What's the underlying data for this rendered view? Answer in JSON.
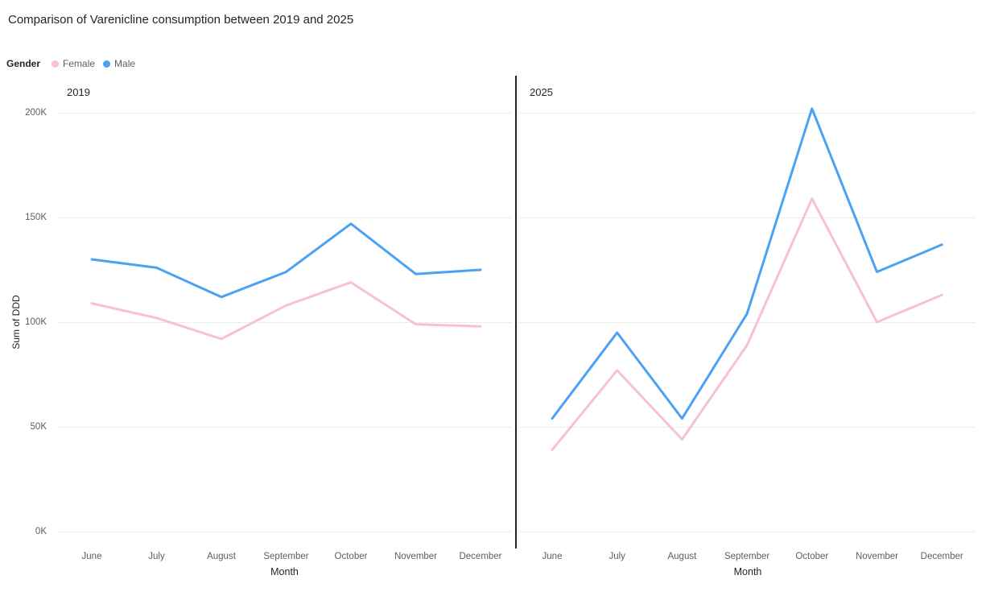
{
  "title": "Comparison of Varenicline consumption between 2019 and 2025",
  "legend": {
    "label": "Gender",
    "items": [
      {
        "name": "Female",
        "color": "#F8BFDA"
      },
      {
        "name": "Male",
        "color": "#4BA2F2"
      }
    ]
  },
  "chart_data": {
    "type": "line",
    "x": [
      "June",
      "July",
      "August",
      "September",
      "October",
      "November",
      "December"
    ],
    "xlabel": "Month",
    "ylabel": "Sum of DDD",
    "ylim": [
      0,
      200000
    ],
    "yticks": [
      "0K",
      "50K",
      "100K",
      "150K",
      "200K"
    ],
    "grid": true,
    "legend_position": "top-left",
    "panels": [
      {
        "title": "2019",
        "series": [
          {
            "name": "Female",
            "color": "#F8BFDA",
            "values": [
              109000,
              102000,
              92000,
              108000,
              119000,
              99000,
              98000
            ]
          },
          {
            "name": "Male",
            "color": "#4BA2F2",
            "values": [
              130000,
              126000,
              112000,
              124000,
              147000,
              123000,
              125000
            ]
          }
        ]
      },
      {
        "title": "2025",
        "series": [
          {
            "name": "Female",
            "color": "#F8BFDA",
            "values": [
              39000,
              77000,
              44000,
              89000,
              159000,
              100000,
              113000
            ]
          },
          {
            "name": "Male",
            "color": "#4BA2F2",
            "values": [
              54000,
              95000,
              54000,
              104000,
              202000,
              124000,
              137000
            ]
          }
        ]
      }
    ]
  }
}
